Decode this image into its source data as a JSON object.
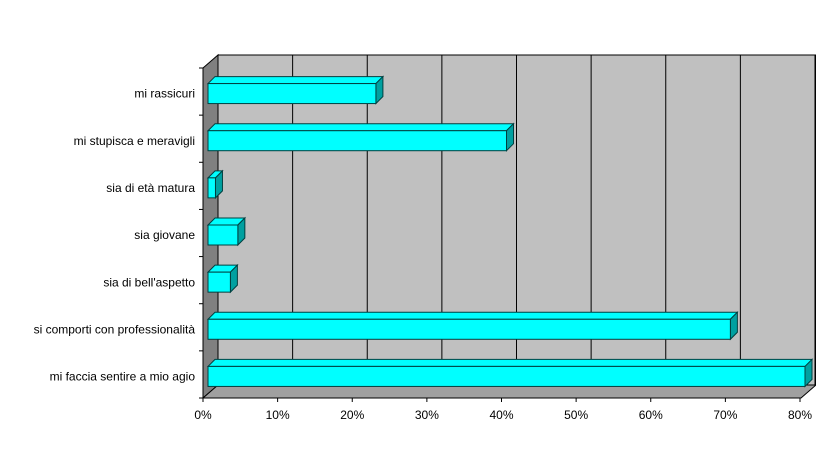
{
  "chart_data": {
    "type": "bar3d",
    "categories": [
      "mi rassicuri",
      "mi stupisca e meravigli",
      "sia di età matura",
      "sia giovane",
      "sia di bell'aspetto",
      "si comporti con professionalità",
      "mi faccia sentire a mio agio"
    ],
    "values": [
      22.5,
      40,
      1,
      4,
      3,
      70,
      80
    ],
    "color": "#00ffff",
    "xlim": [
      0,
      80
    ],
    "xticks": [
      {
        "value": 0,
        "label": "0%"
      },
      {
        "value": 10,
        "label": "10%"
      },
      {
        "value": 20,
        "label": "20%"
      },
      {
        "value": 30,
        "label": "30%"
      },
      {
        "value": 40,
        "label": "40%"
      },
      {
        "value": 50,
        "label": "50%"
      },
      {
        "value": 60,
        "label": "60%"
      },
      {
        "value": 70,
        "label": "70%"
      },
      {
        "value": 80,
        "label": "80%"
      }
    ],
    "grid": true
  }
}
